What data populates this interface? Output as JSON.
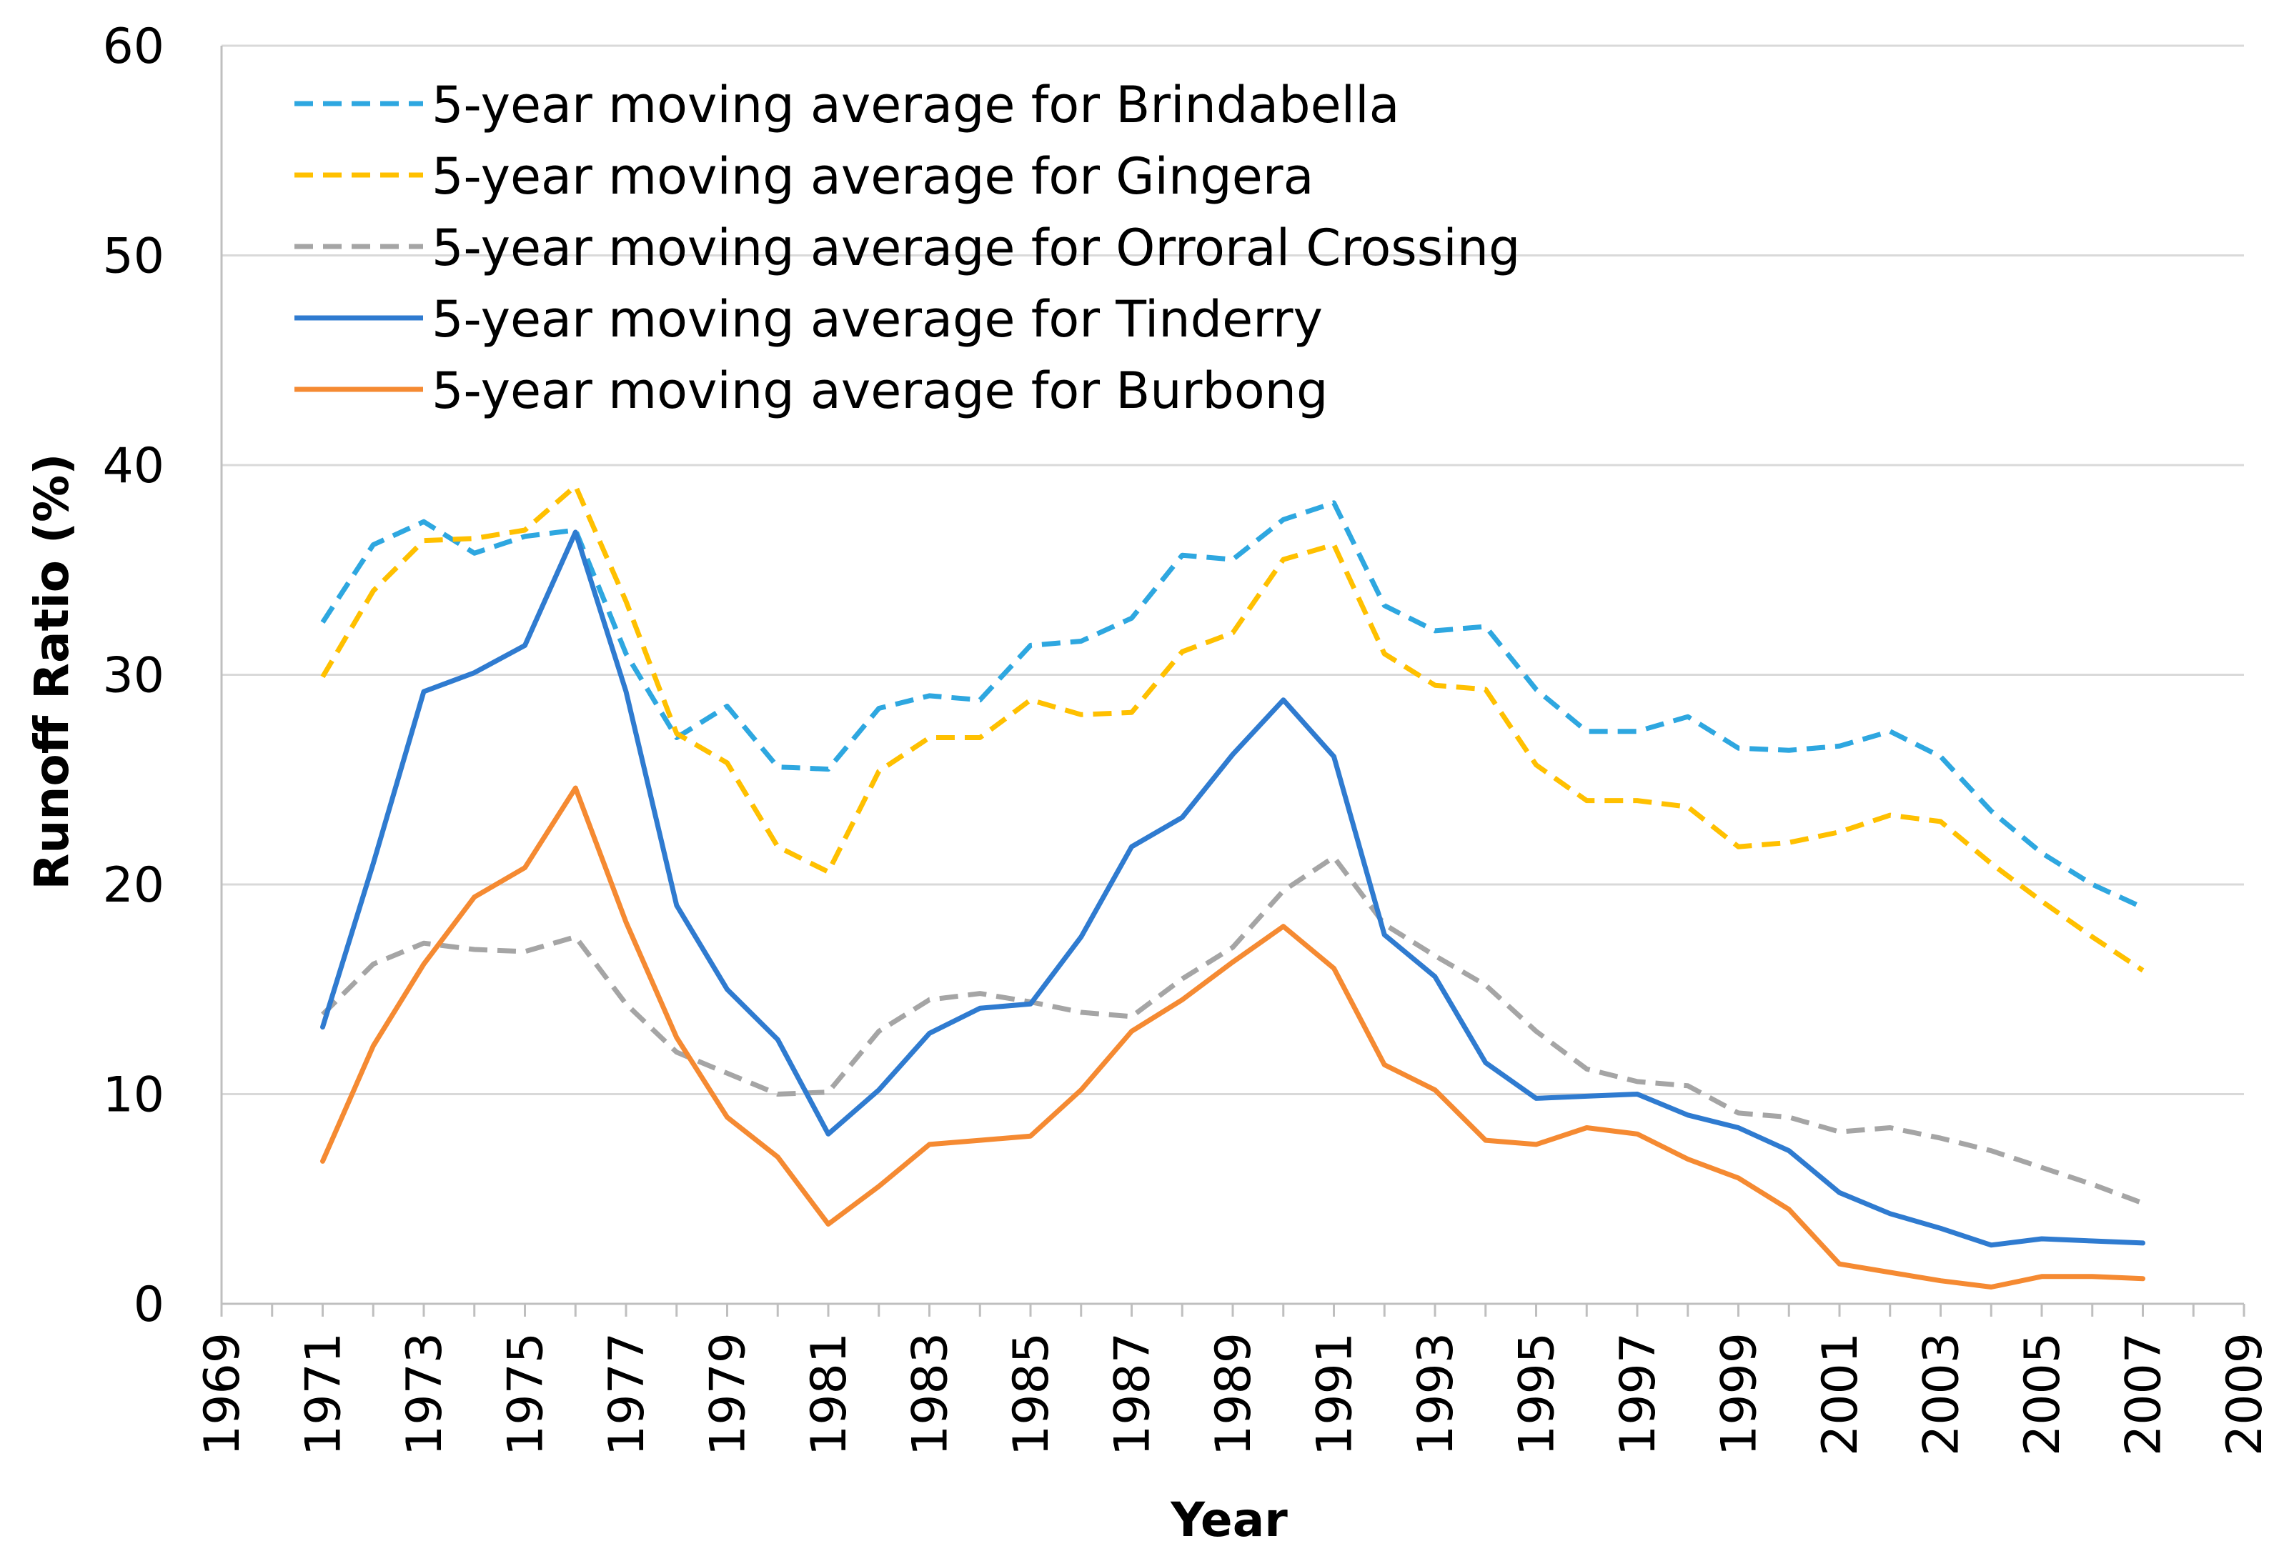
{
  "chart_data": {
    "type": "line",
    "title": "",
    "xlabel": "Year",
    "ylabel": "Runoff Ratio (%)",
    "xlim": [
      1969,
      2009
    ],
    "ylim": [
      0,
      60
    ],
    "x_ticks": [
      "1969",
      "1971",
      "1973",
      "1975",
      "1977",
      "1979",
      "1981",
      "1983",
      "1985",
      "1987",
      "1989",
      "1991",
      "1993",
      "1995",
      "1997",
      "1999",
      "2001",
      "2003",
      "2005",
      "2007",
      "2009"
    ],
    "y_ticks": [
      "0",
      "10",
      "20",
      "30",
      "40",
      "50",
      "60"
    ],
    "grid": "horizontal",
    "legend_position": "top-left",
    "x": [
      1971,
      1972,
      1973,
      1974,
      1975,
      1976,
      1977,
      1978,
      1979,
      1980,
      1981,
      1982,
      1983,
      1984,
      1985,
      1986,
      1987,
      1988,
      1989,
      1990,
      1991,
      1992,
      1993,
      1994,
      1995,
      1996,
      1997,
      1998,
      1999,
      2000,
      2001,
      2002,
      2003,
      2004,
      2005,
      2006,
      2007
    ],
    "series": [
      {
        "name": "5-year moving average for Brindabella",
        "color": "#2EA7E0",
        "dash": "dashed",
        "values": [
          32.5,
          36.2,
          37.3,
          35.8,
          36.6,
          36.9,
          31.0,
          27.0,
          28.5,
          25.6,
          25.5,
          28.4,
          29.0,
          28.8,
          31.4,
          31.6,
          32.7,
          35.7,
          35.5,
          37.4,
          38.2,
          33.3,
          32.1,
          32.3,
          29.3,
          27.3,
          27.3,
          28.0,
          26.5,
          26.4,
          26.6,
          27.3,
          26.1,
          23.5,
          21.5,
          20.0,
          18.9
        ]
      },
      {
        "name": "5-year moving average for Gingera",
        "color": "#FFC000",
        "dash": "dashed",
        "values": [
          29.9,
          34.0,
          36.4,
          36.5,
          36.9,
          39.0,
          33.5,
          27.2,
          25.8,
          21.8,
          20.6,
          25.4,
          27.0,
          27.0,
          28.8,
          28.1,
          28.2,
          31.1,
          32.0,
          35.5,
          36.2,
          31.0,
          29.5,
          29.3,
          25.7,
          24.0,
          24.0,
          23.7,
          21.8,
          22.0,
          22.5,
          23.3,
          23.0,
          21.0,
          19.2,
          17.5,
          15.9
        ]
      },
      {
        "name": "5-year moving average for Orroral Crossing",
        "color": "#A5A5A5",
        "dash": "dashed",
        "values": [
          13.8,
          16.2,
          17.2,
          16.9,
          16.8,
          17.5,
          14.3,
          12.0,
          11.0,
          10.0,
          10.1,
          13.0,
          14.5,
          14.8,
          14.4,
          13.9,
          13.7,
          15.5,
          17.0,
          19.7,
          21.3,
          18.1,
          16.6,
          15.2,
          13.0,
          11.2,
          10.6,
          10.4,
          9.1,
          8.9,
          8.2,
          8.4,
          7.9,
          7.3,
          6.5,
          5.7,
          4.8
        ]
      },
      {
        "name": "5-year moving average for Tinderry",
        "color": "#2F7BD0",
        "dash": "solid",
        "values": [
          13.2,
          21.0,
          29.2,
          30.1,
          31.4,
          36.8,
          29.2,
          19.0,
          15.0,
          12.6,
          8.1,
          10.2,
          12.9,
          14.1,
          14.3,
          17.5,
          21.8,
          23.2,
          26.2,
          28.8,
          26.1,
          17.6,
          15.6,
          11.5,
          9.8,
          9.9,
          10.0,
          9.0,
          8.4,
          7.3,
          5.3,
          4.3,
          3.6,
          2.8,
          3.1,
          3.0,
          2.9
        ]
      },
      {
        "name": "5-year moving average for Burbong",
        "color": "#F58A32",
        "dash": "solid",
        "values": [
          6.8,
          12.3,
          16.2,
          19.4,
          20.8,
          24.6,
          18.2,
          12.7,
          8.9,
          7.0,
          3.8,
          5.6,
          7.6,
          7.8,
          8.0,
          10.2,
          13.0,
          14.5,
          16.3,
          18.0,
          16.0,
          11.4,
          10.2,
          7.8,
          7.6,
          8.4,
          8.1,
          6.9,
          6.0,
          4.5,
          1.9,
          1.5,
          1.1,
          0.8,
          1.3,
          1.3,
          1.2
        ]
      }
    ]
  }
}
